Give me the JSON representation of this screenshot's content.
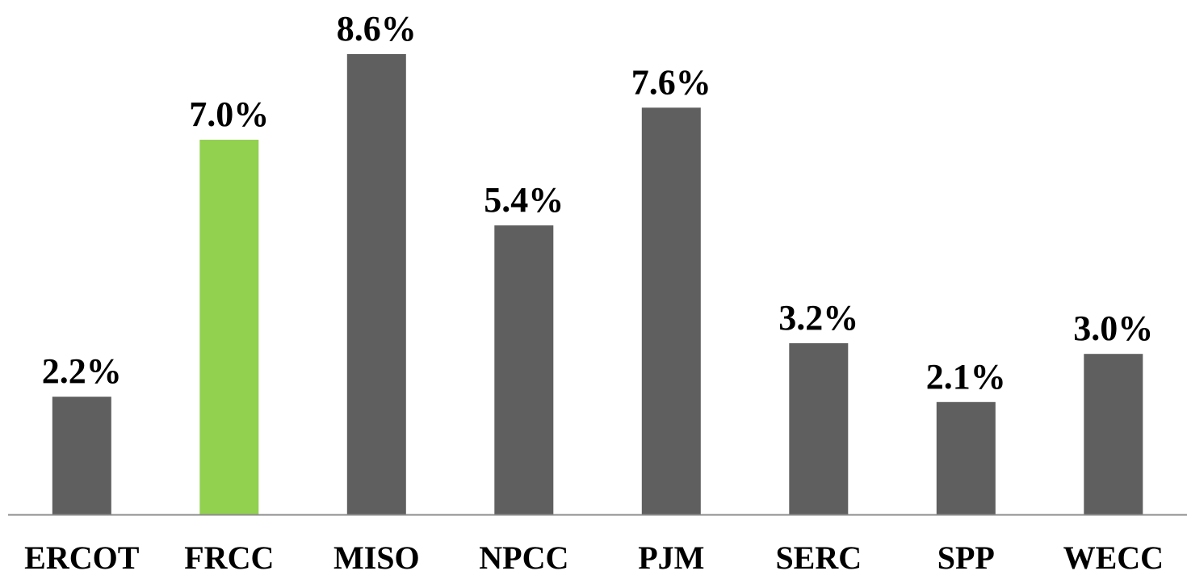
{
  "chart_data": {
    "type": "bar",
    "title": "",
    "xlabel": "",
    "ylabel": "",
    "categories": [
      "ERCOT",
      "FRCC",
      "MISO",
      "NPCC",
      "PJM",
      "SERC",
      "SPP",
      "WECC"
    ],
    "values": [
      2.2,
      7.0,
      8.6,
      5.4,
      7.6,
      3.2,
      2.1,
      3.0
    ],
    "value_labels": [
      "2.2%",
      "7.0%",
      "8.6%",
      "5.4%",
      "7.6%",
      "3.2%",
      "2.1%",
      "3.0%"
    ],
    "bar_colors": [
      "#5f5f5f",
      "#92d050",
      "#5f5f5f",
      "#5f5f5f",
      "#5f5f5f",
      "#5f5f5f",
      "#5f5f5f",
      "#5f5f5f"
    ],
    "axis_color": "#8c8c8c",
    "ylim": [
      0,
      8.6
    ],
    "grid": false,
    "legend": "none"
  }
}
